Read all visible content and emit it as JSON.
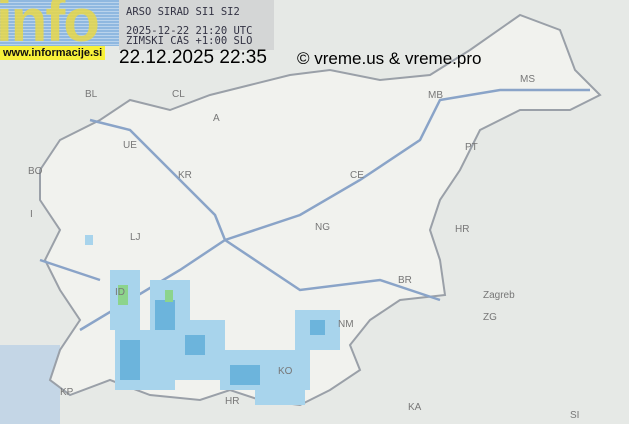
{
  "logo": {
    "text": "info",
    "url": "www.informacije.si"
  },
  "header": {
    "line1": "ARSO SIRAD SI1 SI2",
    "line2": "2025-12-22 21:20 UTC",
    "line3": "ZIMSKI CAS +1:00 SLO",
    "local_time": "22.12.2025 22:35",
    "copyright": "© vreme.us & vreme.pro"
  },
  "map": {
    "labels": [
      "BL",
      "CL",
      "A",
      "UE",
      "KR",
      "BO",
      "I",
      "CE",
      "MB",
      "MS",
      "PT",
      "LJ",
      "ID",
      "NM",
      "KO",
      "KP",
      "HR",
      "Zagreb",
      "ZG",
      "KA",
      "SI",
      "BR",
      "NG"
    ],
    "colors": {
      "land": "#e4e8e4",
      "slovenia": "#f2f3ef",
      "border": "#9aa0a8",
      "roads": "#8aa4c8",
      "radar_light": "#a8d4ec",
      "radar_mid": "#6cb4dc",
      "radar_green": "#8cd48c"
    }
  }
}
